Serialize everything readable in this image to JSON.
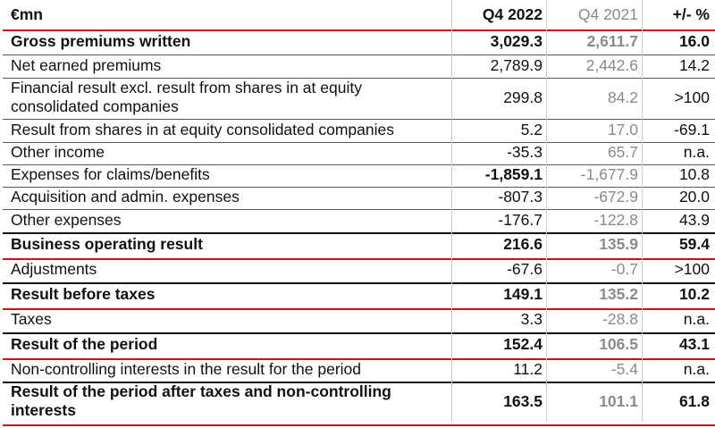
{
  "header": {
    "label": "€mn",
    "col1": "Q4 2022",
    "col2": "Q4 2021",
    "col3": "+/- %"
  },
  "rows": [
    {
      "label": "Gross premiums written",
      "q4_2022": "3,029.3",
      "q4_2021": "2,611.7",
      "change": "16.0"
    },
    {
      "label": "Net earned premiums",
      "q4_2022": "2,789.9",
      "q4_2021": "2,442.6",
      "change": "14.2"
    },
    {
      "label": "Financial result excl. result from shares in at equity consolidated companies",
      "q4_2022": "299.8",
      "q4_2021": "84.2",
      "change": ">100"
    },
    {
      "label": "Result from shares in at equity consolidated companies",
      "q4_2022": "5.2",
      "q4_2021": "17.0",
      "change": "-69.1"
    },
    {
      "label": "Other income",
      "q4_2022": "-35.3",
      "q4_2021": "65.7",
      "change": "n.a."
    },
    {
      "label": "Expenses for claims/benefits",
      "q4_2022": "-1,859.1",
      "q4_2021": "-1,677.9",
      "change": "10.8"
    },
    {
      "label": "Acquisition and admin. expenses",
      "q4_2022": "-807.3",
      "q4_2021": "-672.9",
      "change": "20.0"
    },
    {
      "label": "Other expenses",
      "q4_2022": "-176.7",
      "q4_2021": "-122.8",
      "change": "43.9"
    },
    {
      "label": "Business operating result",
      "q4_2022": "216.6",
      "q4_2021": "135.9",
      "change": "59.4"
    },
    {
      "label": "Adjustments",
      "q4_2022": "-67.6",
      "q4_2021": "-0.7",
      "change": ">100"
    },
    {
      "label": "Result before taxes",
      "q4_2022": "149.1",
      "q4_2021": "135.2",
      "change": "10.2"
    },
    {
      "label": "Taxes",
      "q4_2022": "3.3",
      "q4_2021": "-28.8",
      "change": "n.a."
    },
    {
      "label": "Result of the period",
      "q4_2022": "152.4",
      "q4_2021": "106.5",
      "change": "43.1"
    },
    {
      "label": "Non-controlling interests in the result for the period",
      "q4_2022": "11.2",
      "q4_2021": "-5.4",
      "change": "n.a."
    },
    {
      "label": "Result of the period after taxes and non-controlling interests",
      "q4_2022": "163.5",
      "q4_2021": "101.1",
      "change": "61.8"
    }
  ]
}
